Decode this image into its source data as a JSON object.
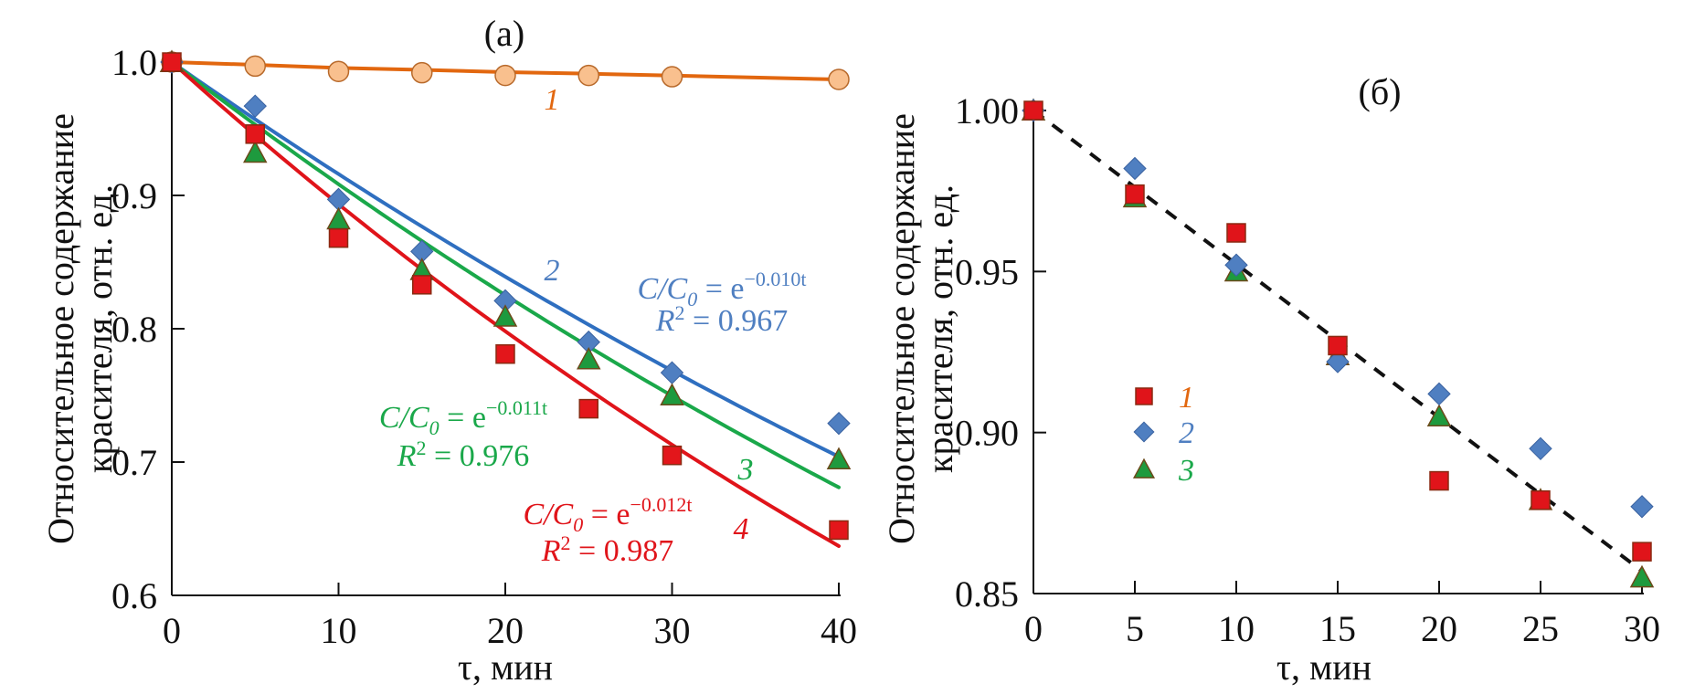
{
  "chart_data": [
    {
      "id": "a",
      "type": "scatter",
      "panel_label": "(a)",
      "xlabel": "τ, мин",
      "ylabel_lines": [
        "Относительное содержание",
        "красителя, отн. ед."
      ],
      "xlim": [
        0,
        40
      ],
      "ylim": [
        0.6,
        1.0
      ],
      "xticks": [
        0,
        10,
        20,
        30,
        40
      ],
      "xtick_labels": [
        "0",
        "10",
        "20",
        "30",
        "40"
      ],
      "yticks": [
        0.6,
        0.7,
        0.8,
        0.9,
        1.0
      ],
      "ytick_labels": [
        "0.6",
        "0.7",
        "0.8",
        "0.9",
        "1.0"
      ],
      "grid": false,
      "x": [
        0,
        5,
        10,
        15,
        20,
        25,
        30,
        40
      ],
      "series": [
        {
          "name": "1",
          "marker": "circle",
          "color": "#e2670f",
          "fill": "#f9c08e",
          "values": [
            1.0,
            0.997,
            0.993,
            0.992,
            0.99,
            0.99,
            0.989,
            0.987
          ],
          "fit": {
            "type": "line",
            "color": "#e2670f",
            "points": [
              [
                0,
                1.0
              ],
              [
                40,
                0.987
              ]
            ]
          },
          "label": "1"
        },
        {
          "name": "2",
          "marker": "diamond",
          "color": "#2f6fc0",
          "fill": "#4f7fc1",
          "values": [
            1.0,
            0.967,
            0.897,
            0.858,
            0.821,
            0.79,
            0.767,
            0.729
          ],
          "fit": {
            "type": "exp",
            "color": "#2f6fc0",
            "y0": 1.0,
            "y_end": 0.704,
            "x_end": 40
          },
          "label": "2",
          "equation": {
            "lhs": "C/C",
            "sub": "0",
            "eq": " = e",
            "exp": "−0.010t",
            "r2_label": "R",
            "r2_sup": "2",
            "r2_value": " = 0.967"
          }
        },
        {
          "name": "3",
          "marker": "triangle",
          "color": "#1aa84a",
          "fill": "#1e9a3e",
          "values": [
            1.0,
            0.932,
            0.882,
            0.844,
            0.809,
            0.777,
            0.75,
            0.702
          ],
          "fit": {
            "type": "exp",
            "color": "#1aa84a",
            "y0": 1.0,
            "y_end": 0.681,
            "x_end": 40
          },
          "label": "3",
          "equation": {
            "lhs": "C/C",
            "sub": "0",
            "eq": " = e",
            "exp": "−0.011t",
            "r2_label": "R",
            "r2_sup": "2",
            "r2_value": " = 0.976"
          }
        },
        {
          "name": "4",
          "marker": "square",
          "color": "#e0141a",
          "fill": "#e3161b",
          "values": [
            1.0,
            0.946,
            0.868,
            0.833,
            0.781,
            0.74,
            0.705,
            0.649
          ],
          "fit": {
            "type": "exp",
            "color": "#e0141a",
            "y0": 1.0,
            "y_end": 0.637,
            "x_end": 40
          },
          "label": "4",
          "equation": {
            "lhs": "C/C",
            "sub": "0",
            "eq": " = e",
            "exp": "−0.012t",
            "r2_label": "R",
            "r2_sup": "2",
            "r2_value": " = 0.987"
          }
        }
      ]
    },
    {
      "id": "b",
      "type": "scatter",
      "panel_label": "(б)",
      "xlabel": "τ, мин",
      "ylabel_lines": [
        "Относительное содержание",
        "красителя, отн. ед."
      ],
      "xlim": [
        0,
        30
      ],
      "ylim": [
        0.85,
        1.0
      ],
      "xticks": [
        0,
        5,
        10,
        15,
        20,
        25,
        30
      ],
      "xtick_labels": [
        "0",
        "5",
        "10",
        "15",
        "20",
        "25",
        "30"
      ],
      "yticks": [
        0.85,
        0.9,
        0.95,
        1.0
      ],
      "ytick_labels": [
        "0.85",
        "0.90",
        "0.95",
        "1.00"
      ],
      "grid": false,
      "legend_position": "center-left",
      "x": [
        0,
        5,
        10,
        15,
        20,
        25,
        30
      ],
      "series": [
        {
          "name": "1",
          "marker": "square",
          "color": "#e0141a",
          "label_color": "#e2670f",
          "values": [
            1.0,
            0.974,
            0.962,
            0.927,
            0.885,
            0.879,
            0.863
          ]
        },
        {
          "name": "2",
          "marker": "diamond",
          "color": "#4f7fc1",
          "label_color": "#4f7fc1",
          "values": [
            1.0,
            0.982,
            0.952,
            0.922,
            0.912,
            0.895,
            0.877
          ]
        },
        {
          "name": "3",
          "marker": "triangle",
          "color": "#1e9a3e",
          "label_color": "#1aa84a",
          "values": [
            1.0,
            0.973,
            0.95,
            0.924,
            0.905,
            0.879,
            0.855
          ]
        }
      ],
      "trend_line": {
        "style": "dashed",
        "color": "#111111",
        "points": [
          [
            0,
            1.0
          ],
          [
            30,
            0.857
          ]
        ]
      }
    }
  ]
}
